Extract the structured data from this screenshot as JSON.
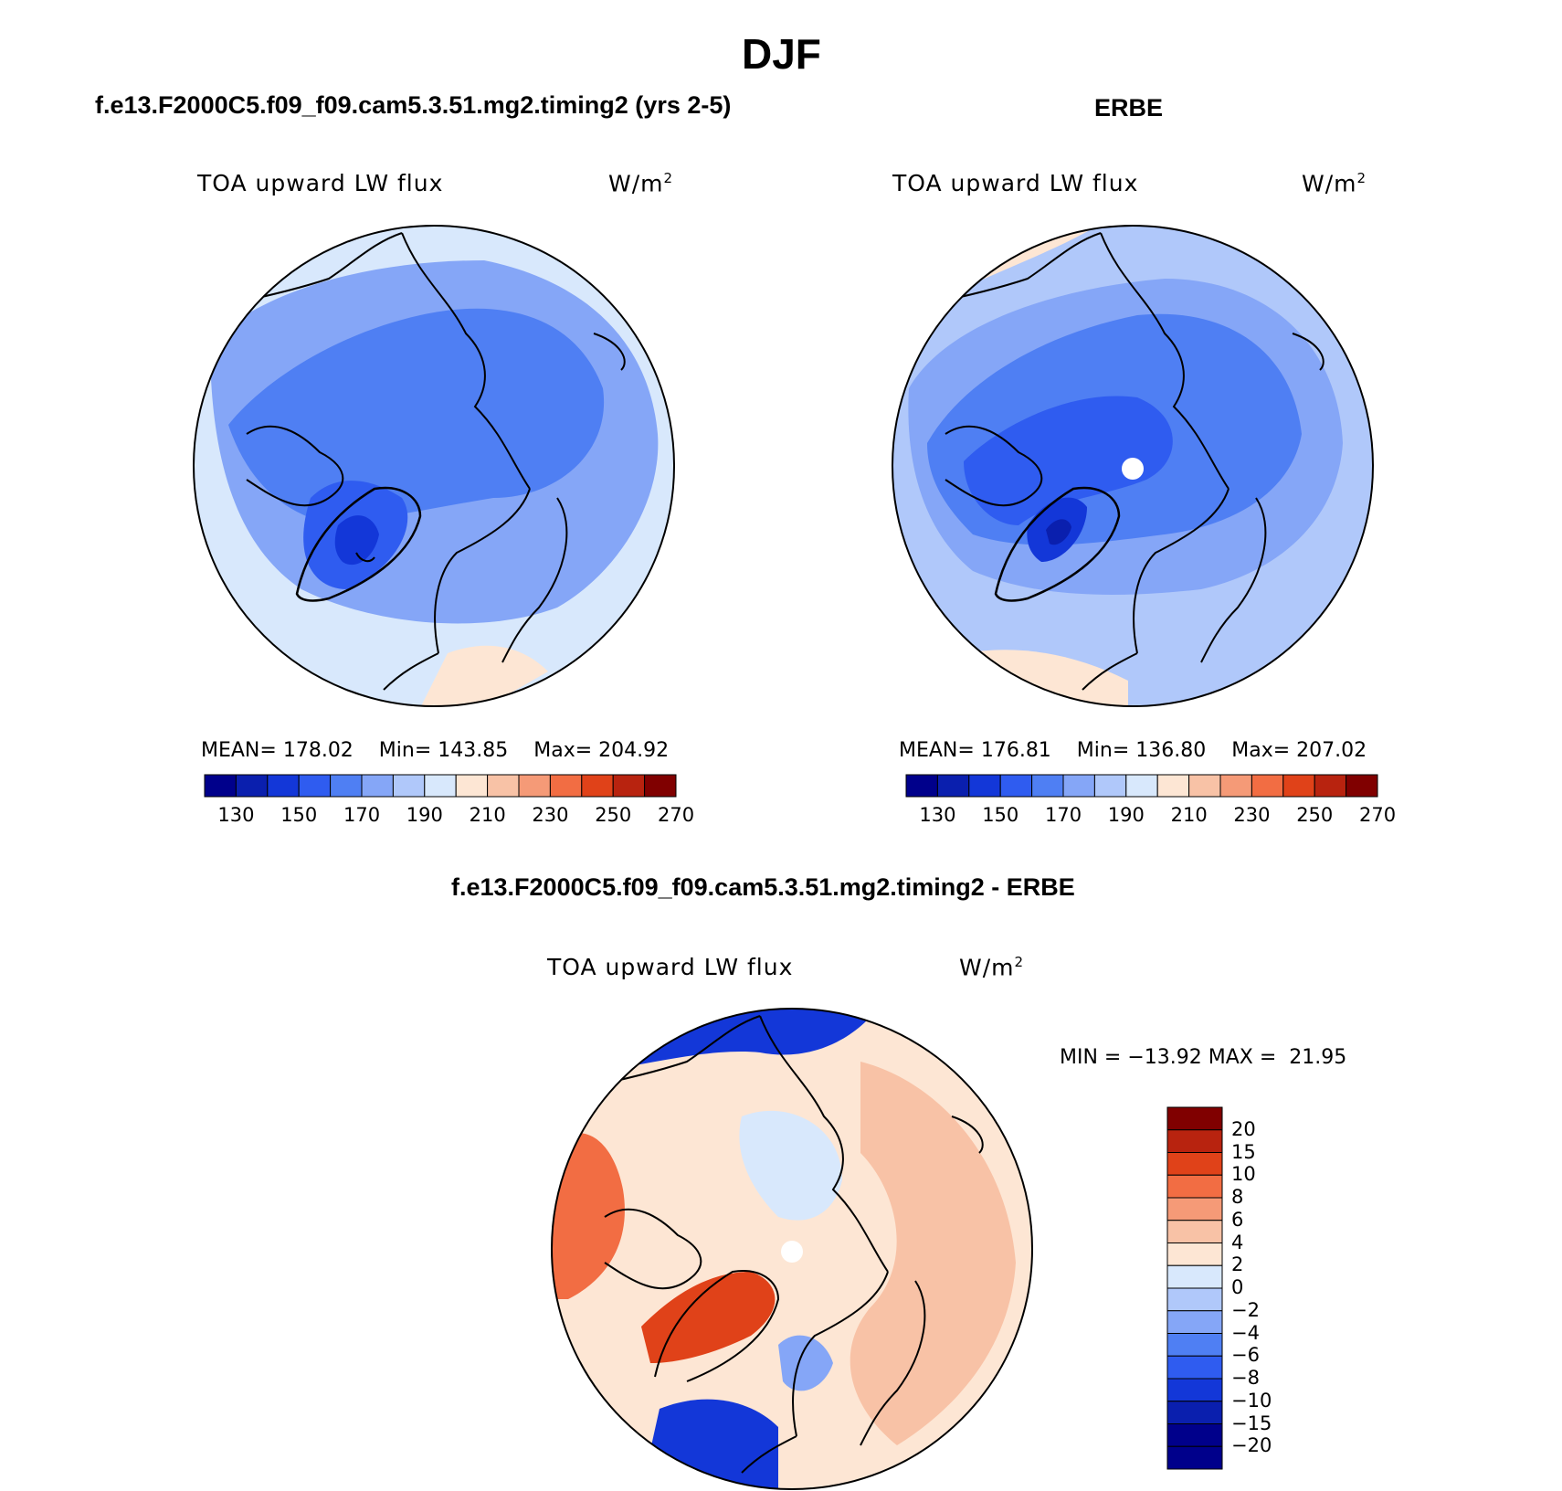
{
  "page": {
    "season_title": "DJF",
    "diff_title": "f.e13.F2000C5.f09_f09.cam5.3.51.mg2.timing2 - ERBE"
  },
  "panels": [
    {
      "id": "model",
      "title": "f.e13.F2000C5.f09_f09.cam5.3.51.mg2.timing2 (yrs 2-5)",
      "variable": "TOA upward LW flux",
      "units": "W/m",
      "units_sup": "2",
      "stats": {
        "mean_label": "MEAN=",
        "mean": "178.02",
        "min_label": "Min=",
        "min": "143.85",
        "max_label": "Max=",
        "max": "204.92"
      },
      "colorbar_ticks": [
        "130",
        "150",
        "170",
        "190",
        "210",
        "230",
        "250",
        "270"
      ]
    },
    {
      "id": "obs",
      "title": "ERBE",
      "variable": "TOA upward LW flux",
      "units": "W/m",
      "units_sup": "2",
      "stats": {
        "mean_label": "MEAN=",
        "mean": "176.81",
        "min_label": "Min=",
        "min": "136.80",
        "max_label": "Max=",
        "max": "207.02"
      },
      "colorbar_ticks": [
        "130",
        "150",
        "170",
        "190",
        "210",
        "230",
        "250",
        "270"
      ]
    }
  ],
  "diff_panel": {
    "variable": "TOA upward LW flux",
    "units": "W/m",
    "units_sup": "2",
    "minmax_text": "MIN = −13.92 MAX =  21.95",
    "colorbar_ticks": [
      "20",
      "15",
      "10",
      "8",
      "6",
      "4",
      "2",
      "0",
      "−2",
      "−4",
      "−6",
      "−8",
      "−10",
      "−15",
      "−20"
    ]
  },
  "colors": {
    "abs_scale": [
      "#00008b",
      "#0a1fae",
      "#1337d8",
      "#2f5cf0",
      "#4f7ff3",
      "#85a6f7",
      "#b0c8fa",
      "#d8e8fc",
      "#fde6d4",
      "#f8c2a6",
      "#f59a77",
      "#f26d43",
      "#e04219",
      "#b8230f",
      "#800000"
    ],
    "diff_scale": [
      "#00008b",
      "#0a1fae",
      "#1337d8",
      "#2f5cf0",
      "#4f7ff3",
      "#85a6f7",
      "#b0c8fa",
      "#d8e8fc",
      "#fde6d4",
      "#f8c2a6",
      "#f59a77",
      "#f26d43",
      "#e04219",
      "#b8230f",
      "#800000"
    ]
  }
}
